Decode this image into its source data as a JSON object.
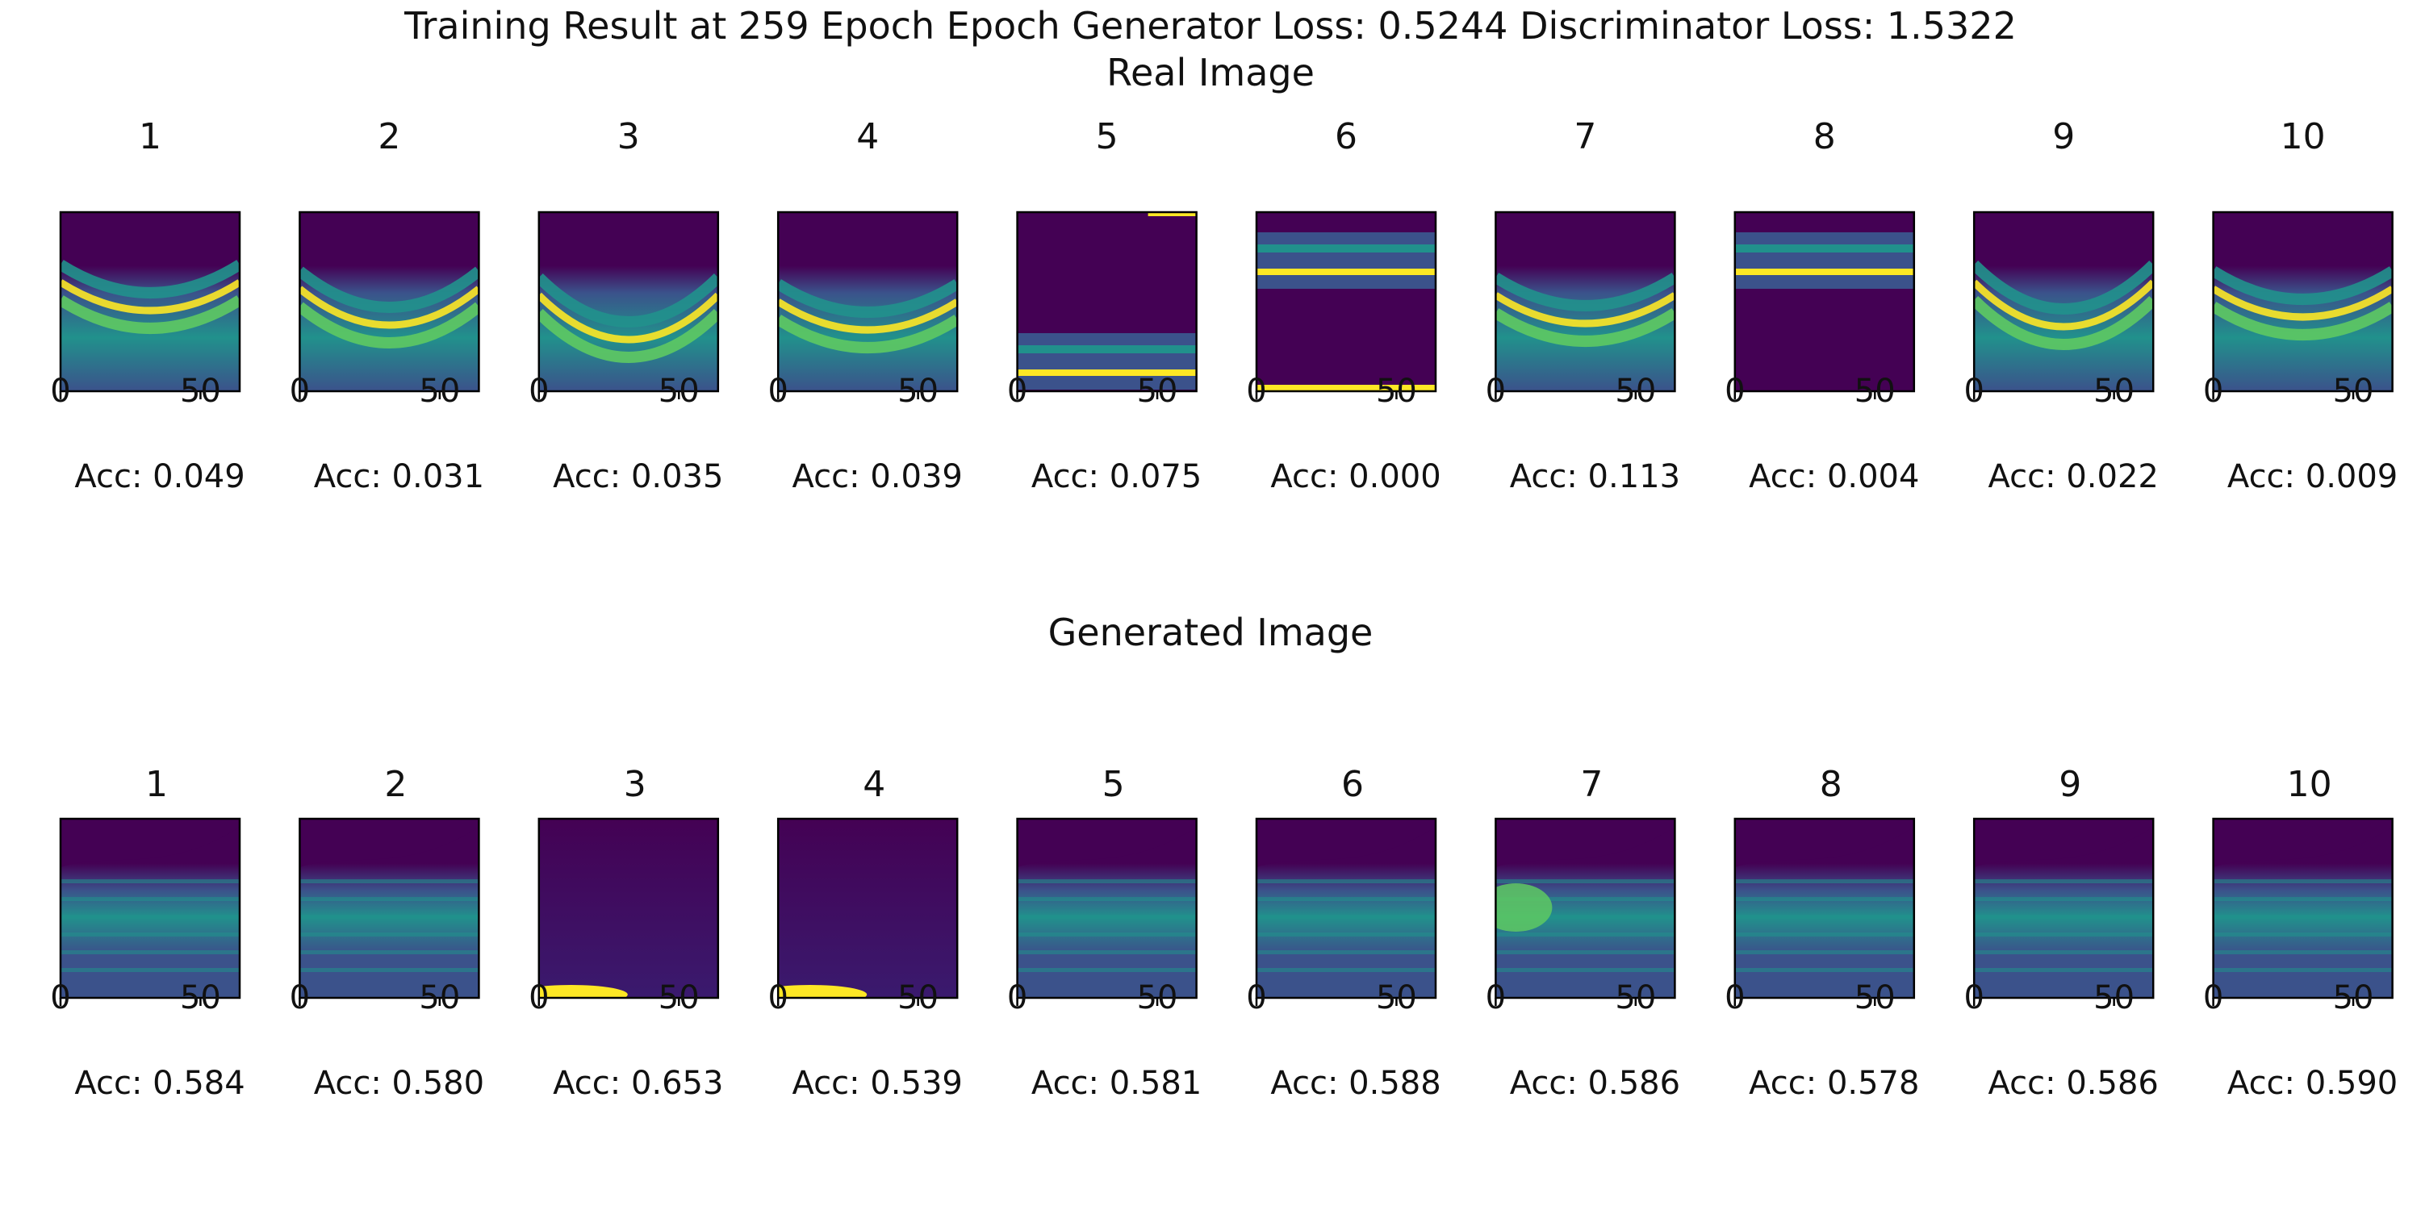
{
  "figure": {
    "title": "Training Result at 259 Epoch Epoch Generator Loss: 0.5244 Discriminator Loss: 1.5322",
    "colormap": [
      "#440154",
      "#3b528b",
      "#21918c",
      "#5ec962",
      "#fde725"
    ]
  },
  "chart_data": [
    {
      "type": "image-grid",
      "subtitle": "Real Image",
      "panel_titles": [
        "1",
        "2",
        "3",
        "4",
        "5",
        "6",
        "7",
        "8",
        "9",
        "10"
      ],
      "xticks": [
        0,
        50
      ],
      "xlim": [
        0,
        64
      ],
      "accuracy_labels": [
        "Acc: 0.049",
        "Acc: 0.031",
        "Acc: 0.035",
        "Acc: 0.039",
        "Acc: 0.075",
        "Acc: 0.000",
        "Acc: 0.113",
        "Acc: 0.004",
        "Acc: 0.022",
        "Acc: 0.009"
      ],
      "accuracy_values": [
        0.049,
        0.031,
        0.035,
        0.039,
        0.075,
        0.0,
        0.113,
        0.004,
        0.022,
        0.009
      ]
    },
    {
      "type": "image-grid",
      "subtitle": "Generated Image",
      "panel_titles": [
        "1",
        "2",
        "3",
        "4",
        "5",
        "6",
        "7",
        "8",
        "9",
        "10"
      ],
      "xticks": [
        0,
        50
      ],
      "xlim": [
        0,
        64
      ],
      "accuracy_labels": [
        "Acc: 0.584",
        "Acc: 0.580",
        "Acc: 0.653",
        "Acc: 0.539",
        "Acc: 0.581",
        "Acc: 0.588",
        "Acc: 0.586",
        "Acc: 0.578",
        "Acc: 0.586",
        "Acc: 0.590"
      ],
      "accuracy_values": [
        0.584,
        0.58,
        0.653,
        0.539,
        0.581,
        0.588,
        0.586,
        0.578,
        0.586,
        0.59
      ]
    }
  ]
}
